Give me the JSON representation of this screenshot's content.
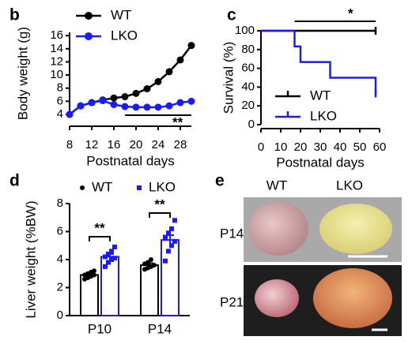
{
  "chart_data": [
    {
      "type": "line",
      "label": "b",
      "xlabel": "Postnatal days",
      "ylabel": "Body weight (g)",
      "x": [
        8,
        10,
        12,
        14,
        16,
        18,
        20,
        22,
        24,
        26,
        28,
        30
      ],
      "series": [
        {
          "name": "WT",
          "color": "#000000",
          "values": [
            4,
            5.3,
            5.8,
            6.2,
            6.5,
            6.7,
            7.2,
            7.9,
            9,
            10.5,
            12.3,
            14.5
          ]
        },
        {
          "name": "LKO",
          "color": "#1a1aff",
          "values": [
            4,
            5.3,
            5.8,
            6.1,
            5.5,
            5.2,
            5.1,
            5.1,
            5.1,
            5.3,
            5.8,
            6.0
          ]
        }
      ],
      "xlim": [
        8,
        30
      ],
      "xticks": [
        8,
        12,
        16,
        20,
        24,
        28
      ],
      "ylim": [
        4,
        16.5
      ],
      "yticks": [
        4,
        6,
        8,
        10,
        12,
        14,
        16
      ],
      "annotations": [
        "**"
      ]
    },
    {
      "type": "step",
      "label": "c",
      "xlabel": "Postnatal days",
      "ylabel": "Survival (%)",
      "series": [
        {
          "name": "WT",
          "color": "#000000",
          "x": [
            0,
            58
          ],
          "values": [
            100,
            100
          ]
        },
        {
          "name": "LKO",
          "color": "#1a1aff",
          "x": [
            0,
            17,
            20,
            35,
            58
          ],
          "values": [
            100,
            83.3,
            66.7,
            50,
            33.3
          ]
        }
      ],
      "xlim": [
        0,
        60
      ],
      "xticks": [
        0,
        10,
        20,
        30,
        40,
        50,
        60
      ],
      "ylim": [
        0,
        100
      ],
      "yticks": [
        0,
        20,
        40,
        60,
        80,
        100
      ],
      "annotations": [
        "*"
      ]
    },
    {
      "type": "bar",
      "label": "d",
      "ylabel": "Liver weight (%BW)",
      "categories": [
        "P10",
        "P14"
      ],
      "series": [
        {
          "name": "WT",
          "color": "#000000",
          "values": [
            2.9,
            3.6
          ],
          "errors": [
            0.12,
            0.15
          ],
          "points": [
            [
              2.6,
              2.7,
              2.8,
              2.9,
              2.9,
              3.0,
              3.1,
              3.2
            ],
            [
              3.3,
              3.4,
              3.5,
              3.6,
              3.7,
              3.8,
              4.0
            ]
          ]
        },
        {
          "name": "LKO",
          "color": "#1a1aff",
          "values": [
            4.2,
            5.4
          ],
          "errors": [
            0.2,
            0.35
          ],
          "points": [
            [
              3.5,
              3.8,
              4.0,
              4.1,
              4.2,
              4.4,
              4.6,
              4.9
            ],
            [
              3.9,
              4.6,
              5.0,
              5.3,
              5.6,
              5.9,
              6.2,
              6.8
            ]
          ]
        }
      ],
      "ylim": [
        0,
        8
      ],
      "yticks": [
        0,
        2,
        4,
        6,
        8
      ],
      "annotations": [
        "**",
        "**"
      ]
    }
  ],
  "photo_panel": {
    "label": "e",
    "columns": [
      "WT",
      "LKO"
    ],
    "rows": [
      "P14",
      "P21"
    ]
  }
}
